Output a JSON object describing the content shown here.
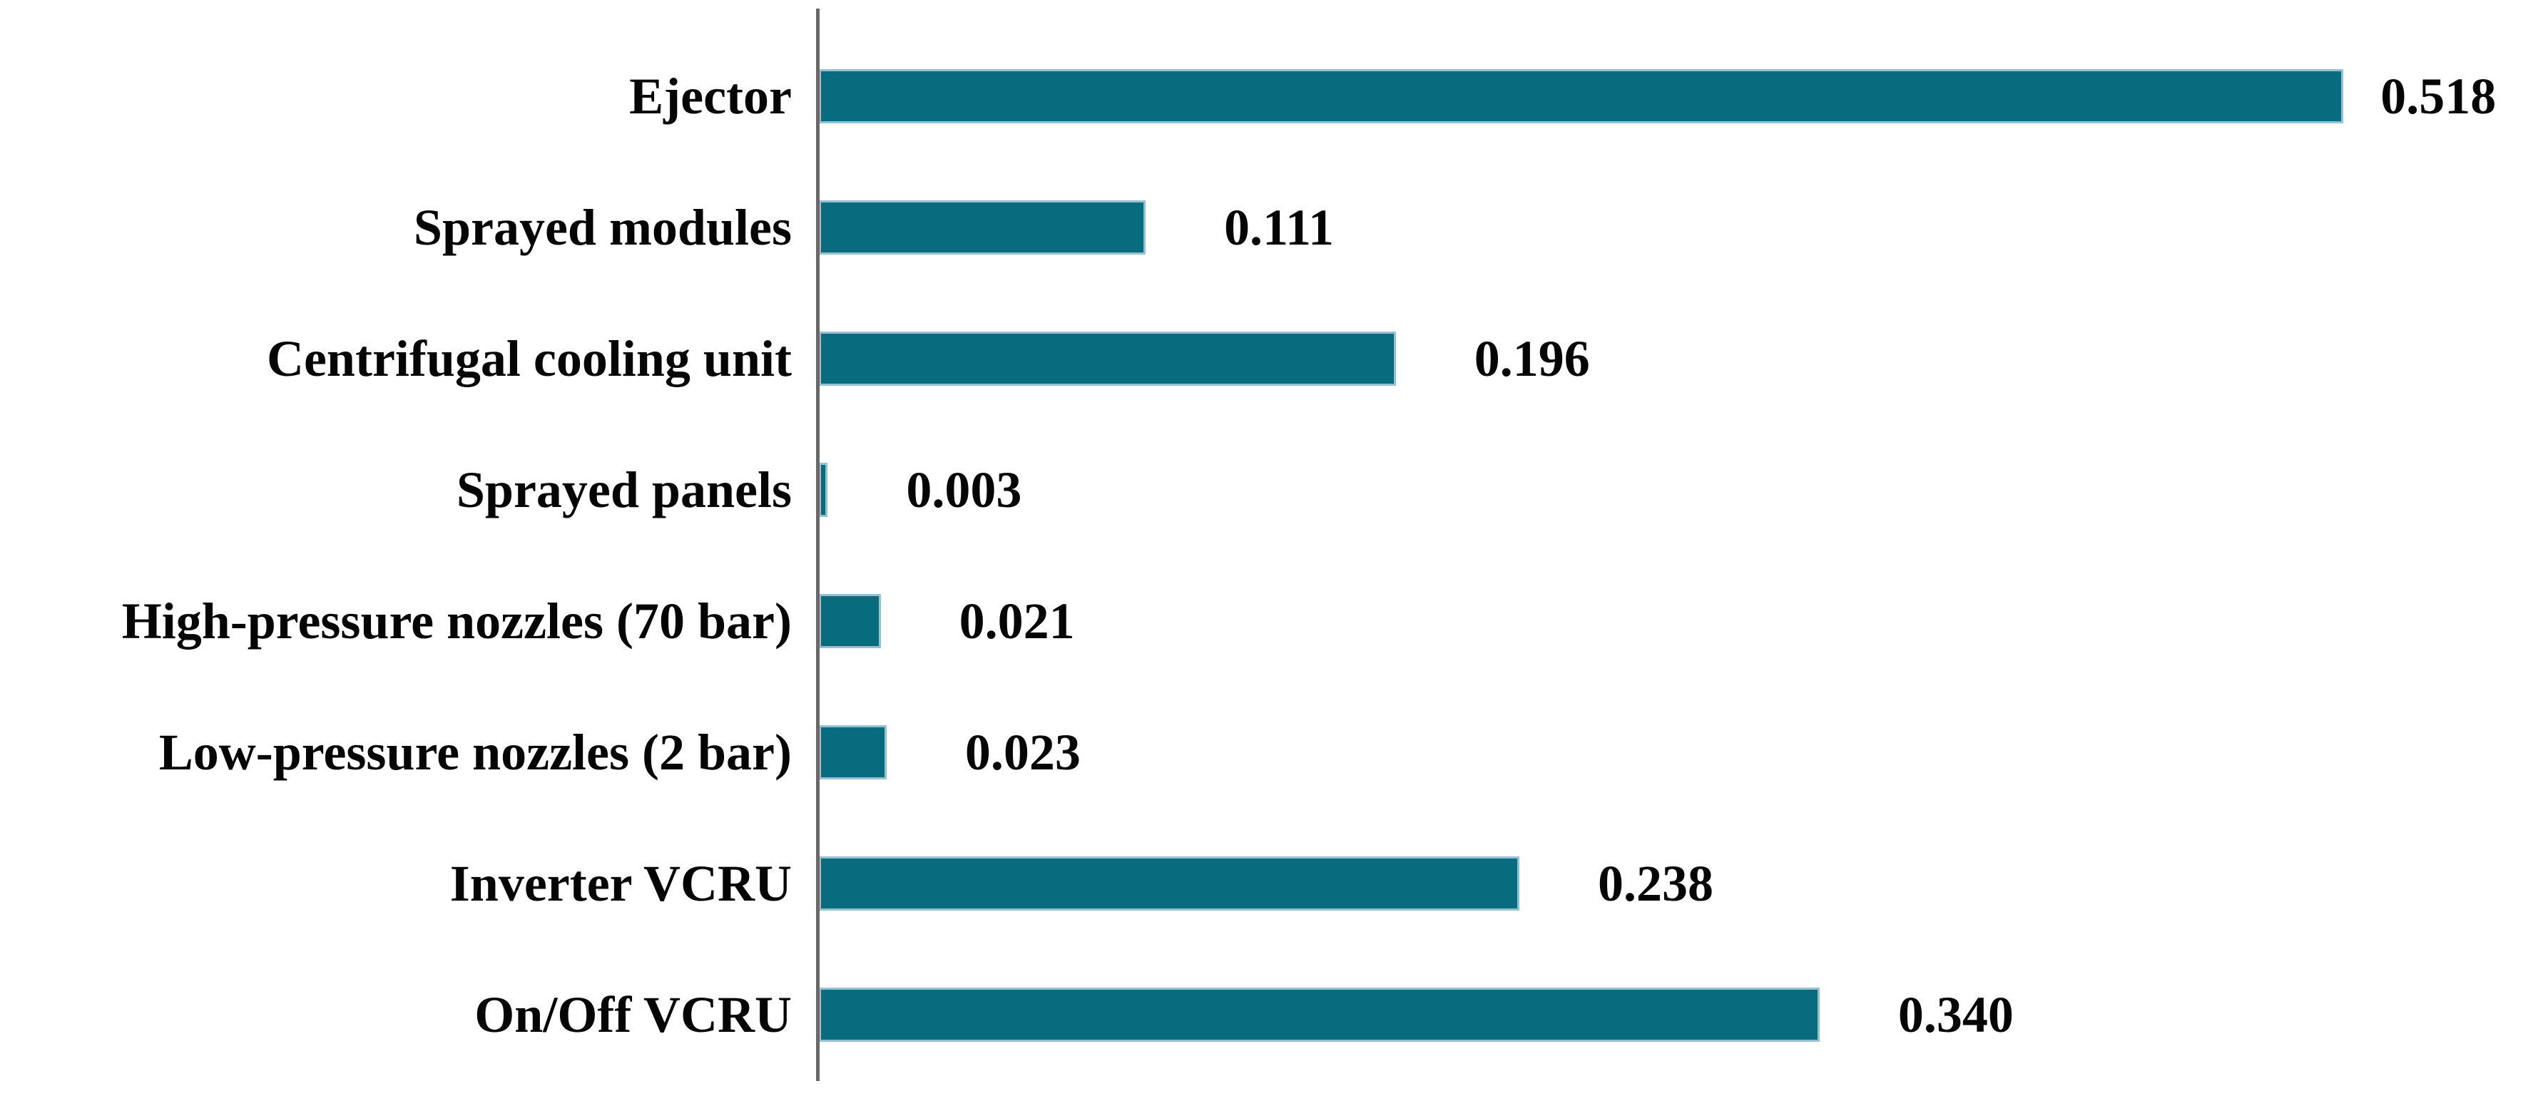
{
  "chart_data": {
    "type": "bar",
    "orientation": "horizontal",
    "title": "",
    "xlabel": "",
    "ylabel": "",
    "categories": [
      "Ejector",
      "Sprayed modules",
      "Centrifugal cooling unit",
      "Sprayed panels",
      "High-pressure nozzles (70 bar)",
      "Low-pressure nozzles (2 bar)",
      "Inverter VCRU",
      "On/Off VCRU"
    ],
    "values": [
      0.518,
      0.111,
      0.196,
      0.003,
      0.021,
      0.023,
      0.238,
      0.34
    ],
    "value_labels": [
      "0.518",
      "0.111",
      "0.196",
      "0.003",
      "0.021",
      "0.023",
      "0.238",
      "0.340"
    ],
    "xlim": [
      0,
      0.5824
    ],
    "grid": false,
    "legend": false,
    "data_label_position": "outside-end",
    "bar_color": "#086b7e",
    "bar_border_color": "#97c1d0",
    "axis_line_color": "#686868",
    "text_color": "#050505",
    "background_color": "#ffffff"
  }
}
